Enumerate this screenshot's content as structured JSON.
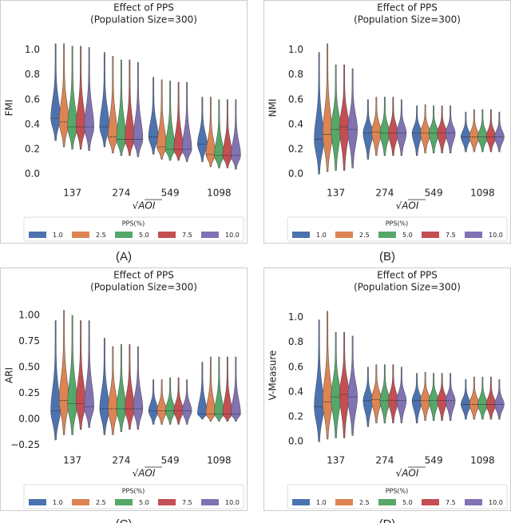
{
  "chart_data": [
    {
      "type": "violin",
      "title": "Effect of PPS",
      "subtitle": "(Population Size=300)",
      "y_label": "FMI",
      "x_label": "√AOI",
      "caption": "(A)",
      "categories": [
        "137",
        "274",
        "549",
        "1098"
      ],
      "ylim": [
        -0.07,
        1.1
      ],
      "yticks": [
        {
          "value": 0,
          "label": "0.0"
        },
        0.2,
        0.4,
        0.6,
        0.8,
        {
          "value": 1,
          "label": "1.0"
        }
      ],
      "legend_title": "PPS(%)",
      "series": [
        {
          "name": "1.0",
          "color": "#4c72b0",
          "min": [
            0.27,
            0.22,
            0.16,
            0.1
          ],
          "median": [
            0.45,
            0.38,
            0.3,
            0.24
          ],
          "max": [
            1.05,
            0.98,
            0.78,
            0.62
          ]
        },
        {
          "name": "2.5",
          "color": "#dd8452",
          "min": [
            0.22,
            0.17,
            0.12,
            0.06
          ],
          "median": [
            0.42,
            0.3,
            0.22,
            0.16
          ],
          "max": [
            1.05,
            0.95,
            0.76,
            0.62
          ]
        },
        {
          "name": "5.0",
          "color": "#55a868",
          "min": [
            0.2,
            0.15,
            0.11,
            0.05
          ],
          "median": [
            0.38,
            0.28,
            0.2,
            0.15
          ],
          "max": [
            1.03,
            0.92,
            0.75,
            0.6
          ]
        },
        {
          "name": "7.5",
          "color": "#c44e52",
          "min": [
            0.2,
            0.15,
            0.11,
            0.05
          ],
          "median": [
            0.38,
            0.28,
            0.2,
            0.15
          ],
          "max": [
            1.03,
            0.92,
            0.74,
            0.6
          ]
        },
        {
          "name": "10.0",
          "color": "#8172b3",
          "min": [
            0.19,
            0.14,
            0.1,
            0.04
          ],
          "median": [
            0.38,
            0.28,
            0.2,
            0.15
          ],
          "max": [
            1.02,
            0.9,
            0.74,
            0.6
          ]
        }
      ]
    },
    {
      "type": "violin",
      "title": "Effect of PPS",
      "subtitle": "(Population Size=300)",
      "y_label": "NMI",
      "x_label": "√AOI",
      "caption": "(B)",
      "categories": [
        "137",
        "274",
        "549",
        "1098"
      ],
      "ylim": [
        -0.07,
        1.1
      ],
      "yticks": [
        {
          "value": 0,
          "label": "0.0"
        },
        0.2,
        0.4,
        0.6,
        0.8,
        {
          "value": 1,
          "label": "1.0"
        }
      ],
      "legend_title": "PPS(%)",
      "series": [
        {
          "name": "1.0",
          "color": "#4c72b0",
          "min": [
            0.0,
            0.12,
            0.15,
            0.18
          ],
          "median": [
            0.28,
            0.33,
            0.33,
            0.3
          ],
          "max": [
            0.98,
            0.6,
            0.55,
            0.5
          ]
        },
        {
          "name": "2.5",
          "color": "#dd8452",
          "min": [
            0.02,
            0.15,
            0.17,
            0.18
          ],
          "median": [
            0.32,
            0.34,
            0.33,
            0.3
          ],
          "max": [
            1.05,
            0.62,
            0.56,
            0.52
          ]
        },
        {
          "name": "5.0",
          "color": "#55a868",
          "min": [
            0.03,
            0.15,
            0.17,
            0.18
          ],
          "median": [
            0.36,
            0.33,
            0.33,
            0.3
          ],
          "max": [
            0.88,
            0.62,
            0.55,
            0.52
          ]
        },
        {
          "name": "7.5",
          "color": "#c44e52",
          "min": [
            0.03,
            0.15,
            0.17,
            0.18
          ],
          "median": [
            0.38,
            0.33,
            0.33,
            0.3
          ],
          "max": [
            0.88,
            0.62,
            0.55,
            0.52
          ]
        },
        {
          "name": "10.0",
          "color": "#8172b3",
          "min": [
            0.05,
            0.15,
            0.17,
            0.18
          ],
          "median": [
            0.36,
            0.33,
            0.33,
            0.3
          ],
          "max": [
            0.85,
            0.6,
            0.55,
            0.5
          ]
        }
      ]
    },
    {
      "type": "violin",
      "title": "Effect of PPS",
      "subtitle": "(Population Size=300)",
      "y_label": "ARI",
      "x_label": "√AOI",
      "caption": "(C)",
      "categories": [
        "137",
        "274",
        "549",
        "1098"
      ],
      "ylim": [
        -0.3,
        1.1
      ],
      "yticks": [
        {
          "value": -0.25,
          "label": "−0.25"
        },
        {
          "value": 0,
          "label": "0.00"
        },
        {
          "value": 0.25,
          "label": "0.25"
        },
        {
          "value": 0.5,
          "label": "0.50"
        },
        {
          "value": 0.75,
          "label": "0.75"
        },
        {
          "value": 1,
          "label": "1.00"
        }
      ],
      "legend_title": "PPS(%)",
      "series": [
        {
          "name": "1.0",
          "color": "#4c72b0",
          "min": [
            -0.2,
            -0.15,
            -0.05,
            0.0
          ],
          "median": [
            0.08,
            0.1,
            0.08,
            0.05
          ],
          "max": [
            0.95,
            0.78,
            0.38,
            0.55
          ]
        },
        {
          "name": "2.5",
          "color": "#dd8452",
          "min": [
            -0.15,
            -0.15,
            -0.05,
            -0.02
          ],
          "median": [
            0.18,
            0.1,
            0.08,
            0.05
          ],
          "max": [
            1.05,
            0.7,
            0.38,
            0.6
          ]
        },
        {
          "name": "5.0",
          "color": "#55a868",
          "min": [
            -0.15,
            -0.12,
            -0.05,
            -0.02
          ],
          "median": [
            0.15,
            0.1,
            0.08,
            0.05
          ],
          "max": [
            1.0,
            0.72,
            0.4,
            0.6
          ]
        },
        {
          "name": "7.5",
          "color": "#c44e52",
          "min": [
            -0.1,
            -0.1,
            -0.05,
            -0.02
          ],
          "median": [
            0.15,
            0.1,
            0.08,
            0.05
          ],
          "max": [
            0.95,
            0.72,
            0.4,
            0.6
          ]
        },
        {
          "name": "10.0",
          "color": "#8172b3",
          "min": [
            -0.08,
            -0.1,
            -0.05,
            -0.02
          ],
          "median": [
            0.12,
            0.1,
            0.08,
            0.05
          ],
          "max": [
            0.95,
            0.7,
            0.38,
            0.6
          ]
        }
      ]
    },
    {
      "type": "violin",
      "title": "Effect of PPS",
      "subtitle": "(Population Size=300)",
      "y_label": "V-Measure",
      "x_label": "√AOI",
      "caption": "(D)",
      "categories": [
        "137",
        "274",
        "549",
        "1098"
      ],
      "ylim": [
        -0.07,
        1.1
      ],
      "yticks": [
        {
          "value": 0,
          "label": "0.0"
        },
        0.2,
        0.4,
        0.6,
        0.8,
        {
          "value": 1,
          "label": "1.0"
        }
      ],
      "legend_title": "PPS(%)",
      "series": [
        {
          "name": "1.0",
          "color": "#4c72b0",
          "min": [
            0.0,
            0.12,
            0.15,
            0.18
          ],
          "median": [
            0.28,
            0.33,
            0.33,
            0.3
          ],
          "max": [
            0.98,
            0.6,
            0.55,
            0.5
          ]
        },
        {
          "name": "2.5",
          "color": "#dd8452",
          "min": [
            0.02,
            0.15,
            0.17,
            0.18
          ],
          "median": [
            0.32,
            0.34,
            0.33,
            0.3
          ],
          "max": [
            1.05,
            0.62,
            0.56,
            0.52
          ]
        },
        {
          "name": "5.0",
          "color": "#55a868",
          "min": [
            0.03,
            0.15,
            0.17,
            0.18
          ],
          "median": [
            0.36,
            0.33,
            0.33,
            0.3
          ],
          "max": [
            0.88,
            0.62,
            0.55,
            0.52
          ]
        },
        {
          "name": "7.5",
          "color": "#c44e52",
          "min": [
            0.03,
            0.15,
            0.17,
            0.18
          ],
          "median": [
            0.38,
            0.33,
            0.33,
            0.3
          ],
          "max": [
            0.88,
            0.62,
            0.55,
            0.52
          ]
        },
        {
          "name": "10.0",
          "color": "#8172b3",
          "min": [
            0.05,
            0.15,
            0.17,
            0.18
          ],
          "median": [
            0.36,
            0.33,
            0.33,
            0.3
          ],
          "max": [
            0.85,
            0.6,
            0.55,
            0.5
          ]
        }
      ]
    }
  ]
}
